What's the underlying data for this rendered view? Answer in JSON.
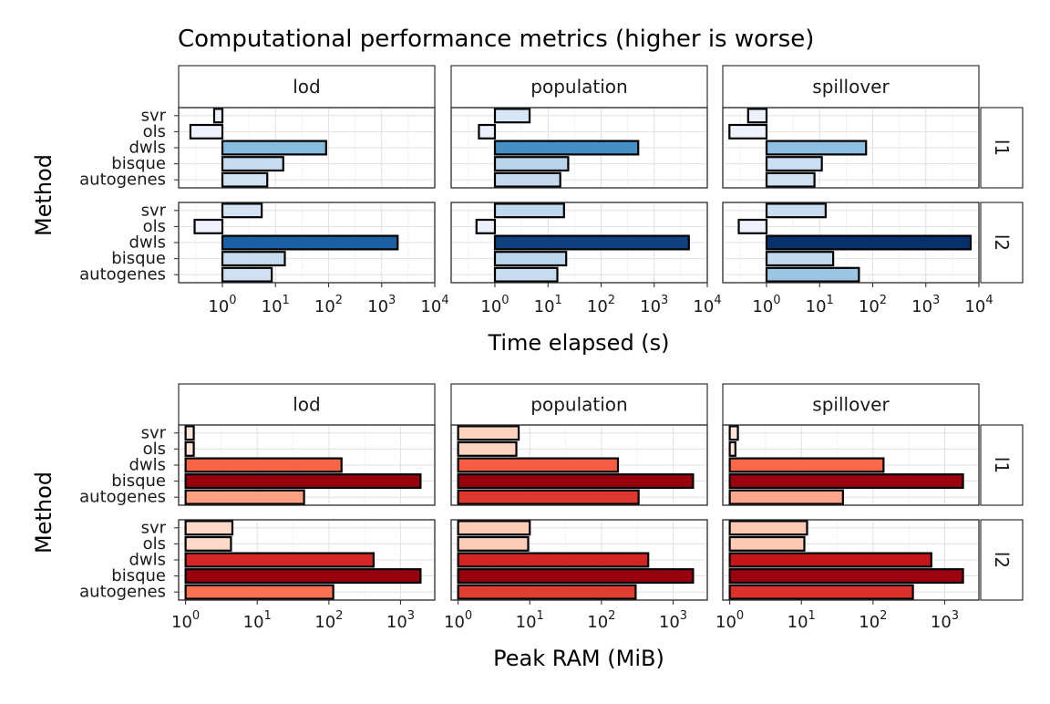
{
  "title": "Computational performance metrics (higher is worse)",
  "chart_data": [
    {
      "type": "bar",
      "orientation": "horizontal",
      "scale": "log10",
      "xlabel": "Time elapsed (s)",
      "ylabel": "Method",
      "xlim": [
        0.15,
        10000
      ],
      "x_ticks": [
        1,
        10,
        100,
        1000,
        10000
      ],
      "x_tick_exponents": [
        "0",
        "1",
        "2",
        "3",
        "4"
      ],
      "x_tick_base": "10",
      "color_scale": "blues",
      "fill_range": [
        0.2,
        7000
      ],
      "column_facets": [
        "lod",
        "population",
        "spillover"
      ],
      "row_facets": [
        "l1",
        "l2"
      ],
      "methods": [
        "svr",
        "ols",
        "dwls",
        "bisque",
        "autogenes"
      ],
      "values": {
        "l1": {
          "lod": [
            0.7,
            0.25,
            90,
            14,
            7
          ],
          "population": [
            4.5,
            0.5,
            500,
            24,
            17
          ],
          "spillover": [
            0.45,
            0.2,
            75,
            11,
            8
          ]
        },
        "l2": {
          "lod": [
            5.5,
            0.3,
            2000,
            15,
            8.5
          ],
          "population": [
            20,
            0.45,
            4500,
            22,
            15
          ],
          "spillover": [
            13,
            0.3,
            7000,
            18,
            55
          ]
        }
      }
    },
    {
      "type": "bar",
      "orientation": "horizontal",
      "scale": "log10",
      "xlabel": "Peak RAM (MiB)",
      "ylabel": "Method",
      "xlim": [
        0.8,
        3000
      ],
      "x_ticks": [
        1,
        10,
        100,
        1000
      ],
      "x_tick_exponents": [
        "0",
        "1",
        "2",
        "3"
      ],
      "x_tick_base": "10",
      "color_scale": "reds",
      "fill_range": [
        1,
        1900
      ],
      "column_facets": [
        "lod",
        "population",
        "spillover"
      ],
      "row_facets": [
        "l1",
        "l2"
      ],
      "methods": [
        "svr",
        "ols",
        "dwls",
        "bisque",
        "autogenes"
      ],
      "values": {
        "l1": {
          "lod": [
            1.3,
            1.3,
            150,
            1900,
            45
          ],
          "population": [
            7,
            6.5,
            170,
            1900,
            330
          ],
          "spillover": [
            1.3,
            1.2,
            140,
            1800,
            38
          ]
        },
        "l2": {
          "lod": [
            4.5,
            4.3,
            420,
            1900,
            115
          ],
          "population": [
            10,
            9.5,
            450,
            1900,
            300
          ],
          "spillover": [
            12,
            11,
            650,
            1800,
            360
          ]
        }
      }
    }
  ]
}
